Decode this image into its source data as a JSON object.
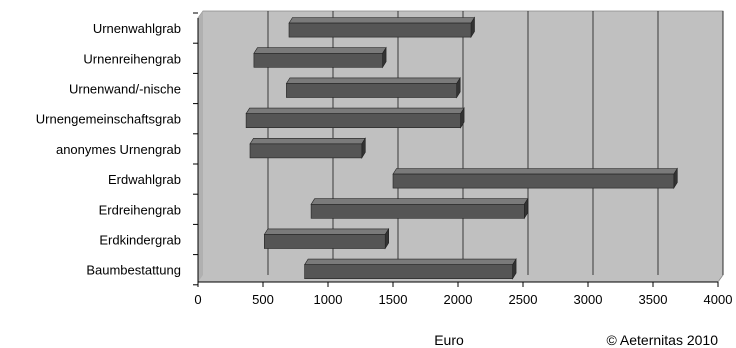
{
  "chart_data": {
    "type": "bar",
    "orientation": "horizontal",
    "style": "floating-range-3d",
    "categories": [
      "Urnenwahlgrab",
      "Urnenreihengrab",
      "Urnenwand/-nische",
      "Urnengemeinschaftsgrab",
      "anonymes Urnengrab",
      "Erdwahlgrab",
      "Erdreihengrab",
      "Erdkindergrab",
      "Baumbestattung"
    ],
    "ranges": [
      [
        700,
        2100
      ],
      [
        430,
        1420
      ],
      [
        680,
        1990
      ],
      [
        370,
        2020
      ],
      [
        400,
        1260
      ],
      [
        1500,
        3660
      ],
      [
        870,
        2510
      ],
      [
        510,
        1440
      ],
      [
        820,
        2420
      ]
    ],
    "xlim": [
      0,
      4000
    ],
    "xticks": [
      "0",
      "500",
      "1000",
      "1500",
      "2000",
      "2500",
      "3000",
      "3500",
      "4000"
    ],
    "xlabel": "Euro",
    "grid": "vertical",
    "legend": "none",
    "credit": "© Aeternitas 2010",
    "colors": {
      "plot_background": "#c0c0c0",
      "bar_front": "#555555",
      "bar_top": "#7a7a7a",
      "bar_side": "#333333",
      "gridline": "#000000"
    }
  }
}
